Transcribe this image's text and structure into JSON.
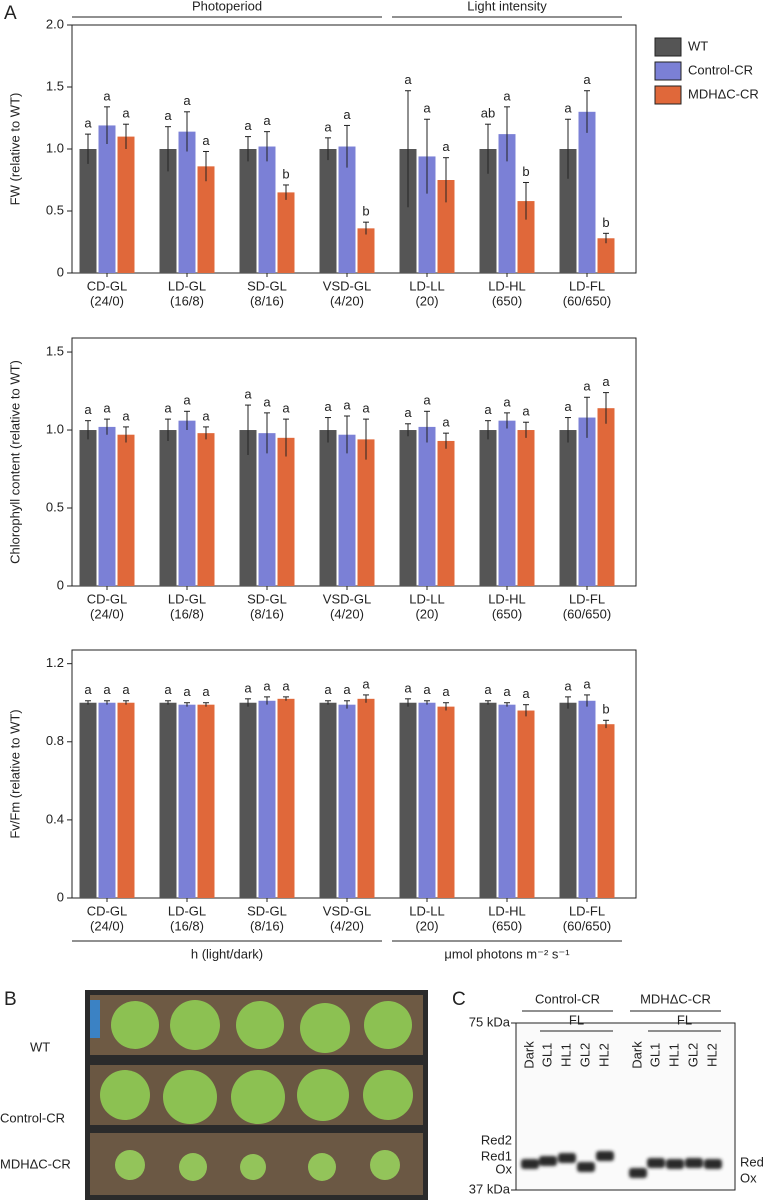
{
  "panel_labels": [
    "A",
    "B",
    "C"
  ],
  "panel_a": {
    "group_headers": [
      "Photoperiod",
      "Light intensity"
    ],
    "group_footers": [
      "h (light/dark)",
      "μmol photons m⁻² s⁻¹"
    ]
  },
  "chart_data": [
    {
      "type": "bar",
      "y_label": "FW (relative to WT)",
      "legend": "right",
      "categories": [
        "CD-GL",
        "LD-GL",
        "SD-GL",
        "VSD-GL",
        "LD-LL",
        "LD-HL",
        "LD-FL"
      ],
      "category_sublabels": [
        "(24/0)",
        "(16/8)",
        "(8/16)",
        "(4/20)",
        "(20)",
        "(650)",
        "(60/650)"
      ],
      "series": [
        {
          "name": "WT",
          "color": "#555555",
          "values": [
            1.0,
            1.0,
            1.0,
            1.0,
            1.0,
            1.0,
            1.0
          ],
          "errors": [
            0.12,
            0.18,
            0.1,
            0.09,
            0.47,
            0.2,
            0.24
          ],
          "letters": [
            "a",
            "a",
            "a",
            "a",
            "a",
            "ab",
            "a"
          ]
        },
        {
          "name": "Control-CR",
          "color": "#7b80d6",
          "values": [
            1.19,
            1.14,
            1.02,
            1.02,
            0.94,
            1.12,
            1.3
          ],
          "errors": [
            0.15,
            0.16,
            0.12,
            0.17,
            0.3,
            0.22,
            0.17
          ],
          "letters": [
            "a",
            "a",
            "a",
            "a",
            "a",
            "a",
            "a"
          ]
        },
        {
          "name": "MDHΔC-CR",
          "color": "#e0683a",
          "values": [
            1.1,
            0.86,
            0.65,
            0.36,
            0.75,
            0.58,
            0.28
          ],
          "errors": [
            0.1,
            0.12,
            0.06,
            0.05,
            0.18,
            0.15,
            0.04
          ],
          "letters": [
            "a",
            "a",
            "b",
            "b",
            "a",
            "b",
            "b"
          ]
        }
      ],
      "ylim": [
        0,
        2
      ],
      "yticks": [
        0,
        0.5,
        {
          "value": 1,
          "label": "1.0"
        },
        1.5,
        {
          "value": 2,
          "label": "2.0"
        }
      ]
    },
    {
      "type": "bar",
      "y_label": "Chlorophyll content (relative to WT)",
      "categories": [
        "CD-GL",
        "LD-GL",
        "SD-GL",
        "VSD-GL",
        "LD-LL",
        "LD-HL",
        "LD-FL"
      ],
      "category_sublabels": [
        "(24/0)",
        "(16/8)",
        "(8/16)",
        "(4/20)",
        "(20)",
        "(650)",
        "(60/650)"
      ],
      "series": [
        {
          "color": "#555555",
          "values": [
            1.0,
            1.0,
            1.0,
            1.0,
            1.0,
            1.0,
            1.0
          ],
          "errors": [
            0.06,
            0.07,
            0.16,
            0.08,
            0.04,
            0.06,
            0.08
          ],
          "letters": [
            "a",
            "a",
            "a",
            "a",
            "a",
            "a",
            "a"
          ]
        },
        {
          "color": "#7b80d6",
          "values": [
            1.02,
            1.06,
            0.98,
            0.97,
            1.02,
            1.06,
            1.08
          ],
          "errors": [
            0.05,
            0.06,
            0.13,
            0.12,
            0.1,
            0.05,
            0.13
          ],
          "letters": [
            "a",
            "a",
            "a",
            "a",
            "a",
            "a",
            "a"
          ]
        },
        {
          "color": "#e0683a",
          "values": [
            0.97,
            0.98,
            0.95,
            0.94,
            0.93,
            1.0,
            1.14
          ],
          "errors": [
            0.05,
            0.04,
            0.12,
            0.13,
            0.05,
            0.05,
            0.1
          ],
          "letters": [
            "a",
            "a",
            "a",
            "a",
            "a",
            "a",
            "a"
          ]
        }
      ],
      "ylim": [
        0,
        1.59
      ],
      "yticks": [
        0,
        0.5,
        {
          "value": 1,
          "label": "1.0"
        },
        1.5
      ]
    },
    {
      "type": "bar",
      "y_label": "Fv/Fm (relative to WT)",
      "categories": [
        "CD-GL",
        "LD-GL",
        "SD-GL",
        "VSD-GL",
        "LD-LL",
        "LD-HL",
        "LD-FL"
      ],
      "category_sublabels": [
        "(24/0)",
        "(16/8)",
        "(8/16)",
        "(4/20)",
        "(20)",
        "(650)",
        "(60/650)"
      ],
      "series": [
        {
          "color": "#555555",
          "values": [
            1.0,
            1.0,
            1.0,
            1.0,
            1.0,
            1.0,
            1.0
          ],
          "errors": [
            0.01,
            0.01,
            0.02,
            0.01,
            0.02,
            0.01,
            0.03
          ],
          "letters": [
            "a",
            "a",
            "a",
            "a",
            "a",
            "a",
            "a"
          ]
        },
        {
          "color": "#7b80d6",
          "values": [
            1.0,
            0.99,
            1.01,
            0.99,
            1.0,
            0.99,
            1.01
          ],
          "errors": [
            0.01,
            0.01,
            0.02,
            0.02,
            0.01,
            0.01,
            0.03
          ],
          "letters": [
            "a",
            "a",
            "a",
            "a",
            "a",
            "a",
            "a"
          ]
        },
        {
          "color": "#e0683a",
          "values": [
            1.0,
            0.99,
            1.02,
            1.02,
            0.98,
            0.96,
            0.89
          ],
          "errors": [
            0.01,
            0.01,
            0.01,
            0.02,
            0.02,
            0.03,
            0.02
          ],
          "letters": [
            "a",
            "a",
            "a",
            "a",
            "a",
            "a",
            "b"
          ]
        }
      ],
      "ylim": [
        0,
        1.27
      ],
      "yticks": [
        0,
        0.4,
        0.8,
        1.2
      ]
    }
  ],
  "panel_b": {
    "row_labels": [
      "WT",
      "Control-CR",
      "MDHΔC-CR"
    ]
  },
  "panel_c": {
    "groups": [
      {
        "name": "Control-CR",
        "condition": "FL",
        "lanes": [
          "Dark",
          "GL1",
          "HL1",
          "GL2",
          "HL2"
        ]
      },
      {
        "name": "MDHΔC-CR",
        "condition": "FL",
        "lanes": [
          "Dark",
          "GL1",
          "HL1",
          "GL2",
          "HL2"
        ]
      }
    ],
    "markers": [
      "75 kDa",
      "37 kDa"
    ],
    "left_bands": [
      "Red2",
      "Red1",
      "Ox"
    ],
    "right_bands": [
      "Red",
      "Ox"
    ]
  }
}
